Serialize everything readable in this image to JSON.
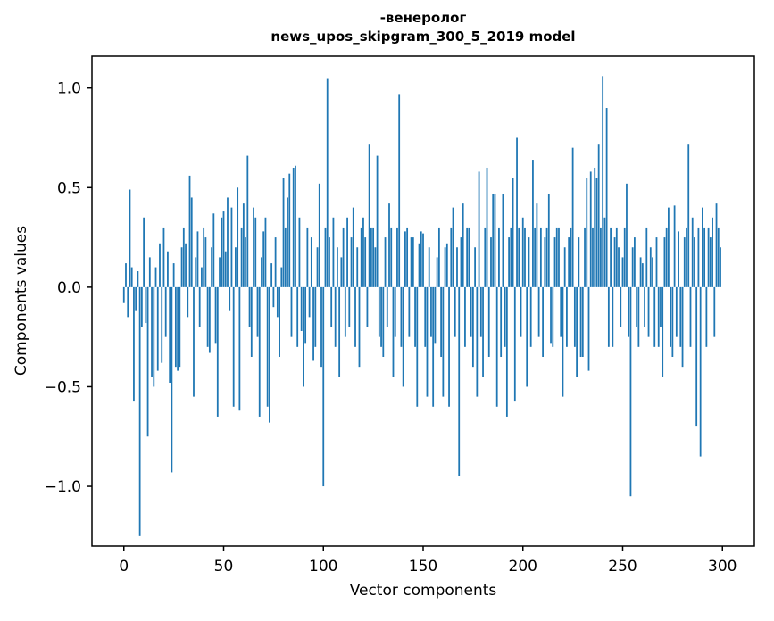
{
  "chart_data": {
    "type": "bar",
    "title": "-венеролог",
    "subtitle": "news_upos_skipgram_300_5_2019 model",
    "xlabel": "Vector components",
    "ylabel": "Components values",
    "bar_color": "#1f77b4",
    "n_components": 300,
    "xlim": [
      -16,
      316
    ],
    "ylim": [
      -1.3,
      1.16
    ],
    "grid": false,
    "legend": "none",
    "xticks": [
      {
        "value": 0,
        "label": "0"
      },
      {
        "value": 50,
        "label": "50"
      },
      {
        "value": 100,
        "label": "100"
      },
      {
        "value": 150,
        "label": "150"
      },
      {
        "value": 200,
        "label": "200"
      },
      {
        "value": 250,
        "label": "250"
      },
      {
        "value": 300,
        "label": "300"
      }
    ],
    "yticks": [
      {
        "value": -1.0,
        "label": "−1.0"
      },
      {
        "value": -0.5,
        "label": "−0.5"
      },
      {
        "value": 0.0,
        "label": "0.0"
      },
      {
        "value": 0.5,
        "label": "0.5"
      },
      {
        "value": 1.0,
        "label": "1.0"
      }
    ],
    "values": [
      -0.08,
      0.12,
      -0.15,
      0.49,
      0.1,
      -0.57,
      -0.12,
      0.08,
      -1.25,
      -0.2,
      0.35,
      -0.18,
      -0.75,
      0.15,
      -0.45,
      -0.5,
      0.1,
      -0.42,
      0.22,
      -0.38,
      0.3,
      -0.25,
      0.18,
      -0.48,
      -0.93,
      0.12,
      -0.4,
      -0.42,
      -0.4,
      0.2,
      0.3,
      0.22,
      -0.15,
      0.56,
      0.45,
      -0.55,
      0.15,
      0.28,
      -0.2,
      0.1,
      0.3,
      0.25,
      -0.3,
      -0.33,
      0.2,
      0.37,
      -0.28,
      -0.65,
      0.15,
      0.35,
      0.38,
      0.18,
      0.45,
      -0.12,
      0.4,
      -0.6,
      0.2,
      0.5,
      -0.62,
      0.3,
      0.42,
      0.25,
      0.66,
      -0.2,
      -0.35,
      0.4,
      0.35,
      -0.25,
      -0.65,
      0.15,
      0.28,
      0.35,
      -0.6,
      -0.68,
      0.12,
      -0.1,
      0.25,
      -0.15,
      -0.35,
      0.1,
      0.55,
      0.3,
      0.45,
      0.57,
      -0.25,
      0.6,
      0.61,
      -0.3,
      0.35,
      -0.22,
      -0.5,
      -0.28,
      0.3,
      -0.15,
      0.25,
      -0.37,
      -0.3,
      0.2,
      0.52,
      -0.4,
      -1.0,
      0.3,
      1.05,
      0.25,
      -0.2,
      0.35,
      -0.3,
      0.2,
      -0.45,
      0.15,
      0.3,
      -0.25,
      0.35,
      -0.2,
      0.25,
      0.4,
      -0.3,
      0.2,
      -0.4,
      0.3,
      0.35,
      0.25,
      -0.2,
      0.72,
      0.3,
      0.3,
      0.2,
      0.66,
      -0.25,
      -0.3,
      -0.35,
      0.25,
      -0.2,
      0.42,
      0.3,
      -0.45,
      -0.25,
      0.3,
      0.97,
      -0.3,
      -0.5,
      0.28,
      0.3,
      -0.25,
      0.25,
      0.25,
      -0.3,
      -0.6,
      0.22,
      0.28,
      0.27,
      -0.3,
      -0.55,
      0.2,
      -0.25,
      -0.6,
      -0.28,
      0.15,
      0.3,
      -0.35,
      -0.55,
      0.2,
      0.22,
      -0.6,
      0.3,
      0.4,
      -0.25,
      0.2,
      -0.95,
      0.25,
      0.42,
      -0.3,
      0.3,
      0.3,
      -0.25,
      -0.4,
      0.2,
      -0.55,
      0.58,
      -0.25,
      -0.45,
      0.3,
      0.6,
      -0.35,
      0.25,
      0.47,
      0.47,
      -0.6,
      0.3,
      -0.35,
      0.47,
      -0.3,
      -0.65,
      0.25,
      0.3,
      0.55,
      -0.57,
      0.75,
      0.3,
      -0.25,
      0.35,
      0.3,
      -0.5,
      0.25,
      -0.3,
      0.64,
      0.3,
      0.42,
      -0.25,
      0.3,
      -0.35,
      0.25,
      0.3,
      0.47,
      -0.28,
      -0.3,
      0.25,
      0.3,
      0.3,
      -0.25,
      -0.55,
      0.2,
      -0.3,
      0.25,
      0.3,
      0.7,
      -0.3,
      -0.45,
      0.25,
      -0.35,
      -0.35,
      0.3,
      0.55,
      -0.42,
      0.58,
      0.3,
      0.6,
      0.55,
      0.72,
      0.3,
      1.06,
      0.35,
      0.9,
      -0.3,
      0.3,
      -0.3,
      0.25,
      0.3,
      0.2,
      -0.2,
      0.15,
      0.3,
      0.52,
      -0.25,
      -1.05,
      0.2,
      0.25,
      -0.2,
      -0.3,
      0.15,
      0.12,
      -0.2,
      0.3,
      -0.25,
      0.2,
      0.15,
      -0.3,
      0.25,
      -0.3,
      -0.2,
      -0.45,
      0.25,
      0.3,
      0.4,
      -0.3,
      -0.35,
      0.41,
      -0.25,
      0.28,
      -0.3,
      -0.4,
      0.25,
      0.3,
      0.72,
      -0.3,
      0.35,
      0.25,
      -0.7,
      0.3,
      -0.85,
      0.4,
      0.3,
      -0.3,
      0.3,
      0.25,
      0.35,
      -0.25,
      0.42,
      0.3,
      0.2
    ]
  }
}
